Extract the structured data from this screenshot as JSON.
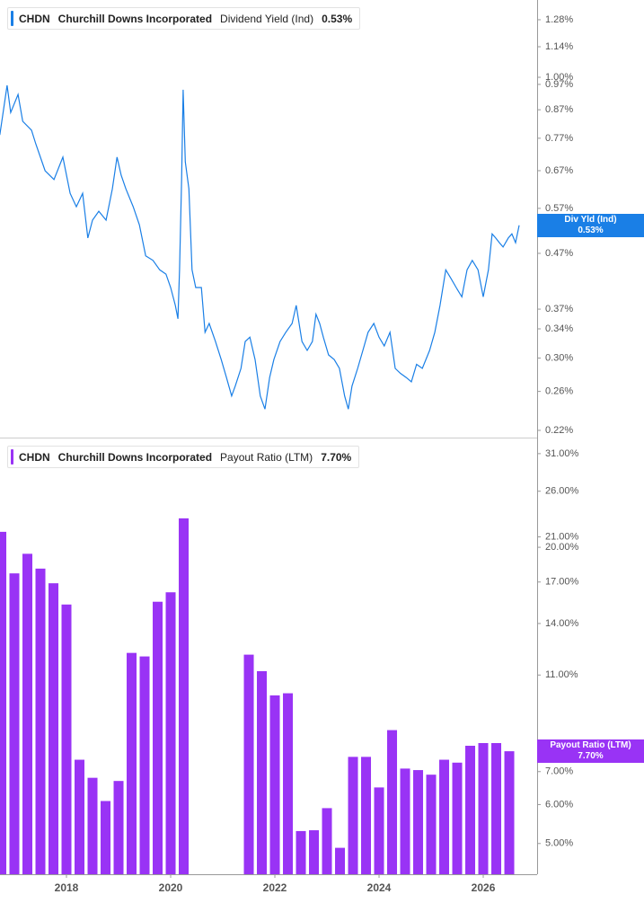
{
  "chart_data": [
    {
      "type": "line",
      "ticker": "CHDN",
      "company": "Churchill Downs Incorporated",
      "series_name": "Dividend Yield (Ind)",
      "tag_label": "Div Yld (Ind)",
      "current": 0.53,
      "current_label": "0.53%",
      "color": "#1a7fe6",
      "log_y": true,
      "x": [
        2016.72,
        2016.86,
        2016.93,
        2017.07,
        2017.16,
        2017.33,
        2017.41,
        2017.59,
        2017.76,
        2017.93,
        2018.07,
        2018.19,
        2018.31,
        2018.41,
        2018.5,
        2018.62,
        2018.76,
        2018.88,
        2018.97,
        2019.05,
        2019.14,
        2019.28,
        2019.4,
        2019.52,
        2019.66,
        2019.79,
        2019.91,
        2020.0,
        2020.09,
        2020.14,
        2020.17,
        2020.21,
        2020.24,
        2020.28,
        2020.35,
        2020.41,
        2020.48,
        2020.59,
        2020.66,
        2020.74,
        2020.86,
        2020.97,
        2021.07,
        2021.17,
        2021.24,
        2021.35,
        2021.43,
        2021.52,
        2021.62,
        2021.72,
        2021.81,
        2021.9,
        2021.98,
        2022.1,
        2022.21,
        2022.33,
        2022.41,
        2022.52,
        2022.62,
        2022.72,
        2022.79,
        2022.86,
        2022.93,
        2023.03,
        2023.14,
        2023.24,
        2023.34,
        2023.41,
        2023.48,
        2023.59,
        2023.69,
        2023.79,
        2023.9,
        2024.0,
        2024.1,
        2024.21,
        2024.31,
        2024.41,
        2024.52,
        2024.62,
        2024.72,
        2024.83,
        2024.97,
        2025.07,
        2025.17,
        2025.28,
        2025.38,
        2025.48,
        2025.59,
        2025.69,
        2025.79,
        2025.9,
        2026.0,
        2026.1,
        2026.17,
        2026.24,
        2026.31,
        2026.38,
        2026.48,
        2026.55,
        2026.62,
        2026.69
      ],
      "values": [
        0.781,
        0.966,
        0.86,
        0.929,
        0.828,
        0.797,
        0.752,
        0.67,
        0.645,
        0.71,
        0.608,
        0.574,
        0.608,
        0.502,
        0.542,
        0.563,
        0.542,
        0.62,
        0.71,
        0.657,
        0.62,
        0.574,
        0.531,
        0.465,
        0.456,
        0.438,
        0.43,
        0.406,
        0.376,
        0.355,
        0.438,
        0.645,
        0.948,
        0.696,
        0.62,
        0.438,
        0.406,
        0.406,
        0.335,
        0.348,
        0.322,
        0.298,
        0.276,
        0.255,
        0.266,
        0.287,
        0.322,
        0.328,
        0.298,
        0.255,
        0.241,
        0.276,
        0.298,
        0.322,
        0.335,
        0.348,
        0.376,
        0.322,
        0.31,
        0.322,
        0.362,
        0.348,
        0.328,
        0.304,
        0.298,
        0.287,
        0.255,
        0.241,
        0.266,
        0.287,
        0.31,
        0.335,
        0.348,
        0.328,
        0.316,
        0.335,
        0.287,
        0.281,
        0.276,
        0.271,
        0.292,
        0.287,
        0.31,
        0.335,
        0.376,
        0.438,
        0.422,
        0.406,
        0.39,
        0.438,
        0.456,
        0.438,
        0.39,
        0.438,
        0.511,
        0.502,
        0.492,
        0.483,
        0.502,
        0.511,
        0.492,
        0.53
      ],
      "xlim": [
        2016.724,
        2027.034
      ],
      "ylim": [
        0.2133,
        1.393
      ],
      "yticks": [
        {
          "value": 1.28,
          "label": "1.28%"
        },
        {
          "value": 1.14,
          "label": "1.14%"
        },
        {
          "value": 1.0,
          "label": "1.00%"
        },
        {
          "value": 0.97,
          "label": "0.97%"
        },
        {
          "value": 0.87,
          "label": "0.87%"
        },
        {
          "value": 0.77,
          "label": "0.77%"
        },
        {
          "value": 0.67,
          "label": "0.67%"
        },
        {
          "value": 0.57,
          "label": "0.57%"
        },
        {
          "value": 0.47,
          "label": "0.47%"
        },
        {
          "value": 0.37,
          "label": "0.37%"
        },
        {
          "value": 0.34,
          "label": "0.34%"
        },
        {
          "value": 0.3,
          "label": "0.30%"
        },
        {
          "value": 0.26,
          "label": "0.26%"
        },
        {
          "value": 0.22,
          "label": "0.22%"
        }
      ]
    },
    {
      "type": "bar",
      "ticker": "CHDN",
      "company": "Churchill Downs Incorporated",
      "series_name": "Payout Ratio (LTM)",
      "tag_label": "Payout Ratio (LTM)",
      "current": 7.7,
      "current_label": "7.70%",
      "color": "#9933f5",
      "log_y": true,
      "x": [
        2016.75,
        2017.0,
        2017.25,
        2017.5,
        2017.75,
        2018.0,
        2018.25,
        2018.5,
        2018.75,
        2019.0,
        2019.25,
        2019.5,
        2019.75,
        2020.0,
        2020.25,
        2021.5,
        2021.75,
        2022.0,
        2022.25,
        2022.5,
        2022.75,
        2023.0,
        2023.25,
        2023.5,
        2023.75,
        2024.0,
        2024.25,
        2024.5,
        2024.75,
        2025.0,
        2025.25,
        2025.5,
        2025.75,
        2026.0,
        2026.25,
        2026.5
      ],
      "values": [
        21.5,
        17.7,
        19.4,
        18.1,
        16.9,
        15.3,
        7.4,
        6.8,
        6.1,
        6.7,
        12.2,
        12.0,
        15.5,
        16.2,
        22.9,
        12.1,
        11.2,
        10.0,
        10.1,
        5.3,
        5.32,
        5.9,
        4.9,
        7.5,
        7.5,
        6.5,
        8.5,
        7.1,
        7.05,
        6.9,
        7.4,
        7.3,
        7.9,
        8.0,
        8.0,
        7.7
      ],
      "xlim": [
        2016.724,
        2027.034
      ],
      "ylim": [
        4.33,
        33.0
      ],
      "xticks": [
        2018,
        2020,
        2022,
        2024,
        2026
      ],
      "yticks": [
        {
          "value": 31,
          "label": "31.00%"
        },
        {
          "value": 26,
          "label": "26.00%"
        },
        {
          "value": 21,
          "label": "21.00%"
        },
        {
          "value": 20,
          "label": "20.00%"
        },
        {
          "value": 17,
          "label": "17.00%"
        },
        {
          "value": 14,
          "label": "14.00%"
        },
        {
          "value": 11,
          "label": "11.00%"
        },
        {
          "value": 7,
          "label": "7.00%"
        },
        {
          "value": 6,
          "label": "6.00%"
        },
        {
          "value": 5,
          "label": "5.00%"
        }
      ]
    }
  ]
}
